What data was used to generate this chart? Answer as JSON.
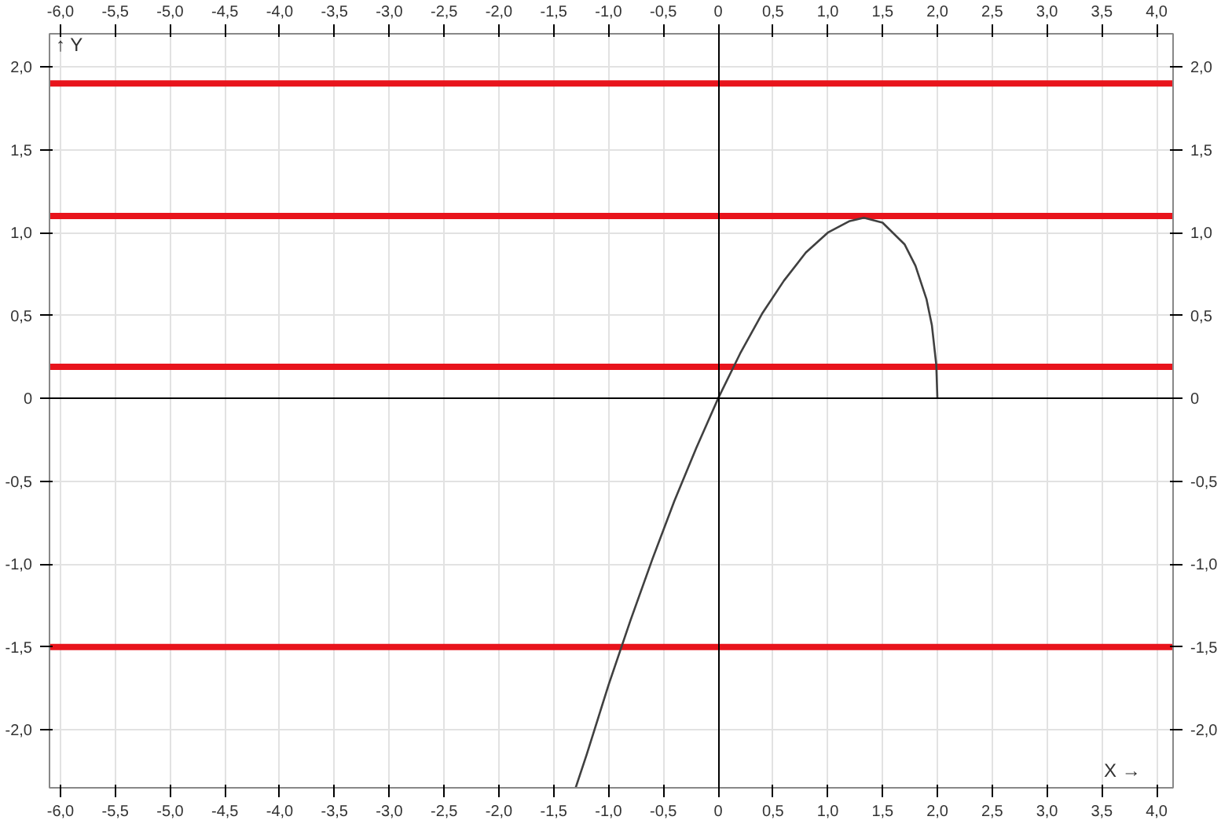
{
  "chart_data": {
    "type": "line",
    "xlabel": "X →",
    "ylabel": "↑ Y",
    "x": [
      -1.3,
      -1.2,
      -1.0,
      -0.8,
      -0.6,
      -0.4,
      -0.2,
      0,
      0.2,
      0.4,
      0.6,
      0.8,
      1.0,
      1.2,
      1.33,
      1.5,
      1.7,
      1.8,
      1.9,
      1.95,
      1.99,
      2.0
    ],
    "series": [
      {
        "color": "#404040",
        "values": [
          -2.35,
          -2.15,
          -1.73,
          -1.34,
          -0.97,
          -0.62,
          -0.3,
          0,
          0.27,
          0.51,
          0.71,
          0.88,
          1.0,
          1.07,
          1.09,
          1.06,
          0.93,
          0.8,
          0.6,
          0.44,
          0.2,
          0
        ]
      }
    ],
    "xlim": [
      -6.1,
      4.15
    ],
    "ylim": [
      -2.35,
      2.2
    ],
    "xticks": [
      {
        "value": -6,
        "label": "-6,0"
      },
      {
        "value": -5.5,
        "label": "-5,5"
      },
      {
        "value": -5,
        "label": "-5,0"
      },
      {
        "value": -4.5,
        "label": "-4,5"
      },
      {
        "value": -4,
        "label": "-4,0"
      },
      {
        "value": -3.5,
        "label": "-3,5"
      },
      {
        "value": -3,
        "label": "-3,0"
      },
      {
        "value": -2.5,
        "label": "-2,5"
      },
      {
        "value": -2,
        "label": "-2,0"
      },
      {
        "value": -1.5,
        "label": "-1,5"
      },
      {
        "value": -1,
        "label": "-1,0"
      },
      {
        "value": -0.5,
        "label": "-0,5"
      },
      0,
      {
        "value": 0.5,
        "label": "0,5"
      },
      {
        "value": 1,
        "label": "1,0"
      },
      {
        "value": 1.5,
        "label": "1,5"
      },
      {
        "value": 2,
        "label": "2,0"
      },
      {
        "value": 2.5,
        "label": "2,5"
      },
      {
        "value": 3,
        "label": "3,0"
      },
      {
        "value": 3.5,
        "label": "3,5"
      },
      {
        "value": 4,
        "label": "4,0"
      }
    ],
    "yticks": [
      {
        "value": -2,
        "label": "-2,0"
      },
      {
        "value": -1.5,
        "label": "-1,5"
      },
      {
        "value": -1,
        "label": "-1,0"
      },
      {
        "value": -0.5,
        "label": "-0,5"
      },
      0,
      {
        "value": 0.5,
        "label": "0,5"
      },
      {
        "value": 1,
        "label": "1,0"
      },
      {
        "value": 1.5,
        "label": "1,5"
      },
      {
        "value": 2,
        "label": "2,0"
      }
    ],
    "x2lim": [
      -6.1,
      4.15
    ],
    "x2ticks": [
      {
        "value": -6,
        "label": "-6,0"
      },
      {
        "value": -5.5,
        "label": "-5,5"
      },
      {
        "value": -5,
        "label": "-5,0"
      },
      {
        "value": -4.5,
        "label": "-4,5"
      },
      {
        "value": -4,
        "label": "-4,0"
      },
      {
        "value": -3.5,
        "label": "-3,5"
      },
      {
        "value": -3,
        "label": "-3,0"
      },
      {
        "value": -2.5,
        "label": "-2,5"
      },
      {
        "value": -2,
        "label": "-2,0"
      },
      {
        "value": -1.5,
        "label": "-1,5"
      },
      {
        "value": -1,
        "label": "-1,0"
      },
      {
        "value": -0.5,
        "label": "-0,5"
      },
      0,
      {
        "value": 0.5,
        "label": "0,5"
      },
      {
        "value": 1,
        "label": "1,0"
      },
      {
        "value": 1.5,
        "label": "1,5"
      },
      {
        "value": 2,
        "label": "2,0"
      },
      {
        "value": 2.5,
        "label": "2,5"
      },
      {
        "value": 3,
        "label": "3,0"
      },
      {
        "value": 3.5,
        "label": "3,5"
      },
      {
        "value": 4,
        "label": "4,0"
      }
    ],
    "y2lim": [
      -2.35,
      2.2
    ],
    "y2ticks": [
      {
        "value": -2,
        "label": "-2,0"
      },
      {
        "value": -1.5,
        "label": "-1,5"
      },
      {
        "value": -1,
        "label": "-1,0"
      },
      {
        "value": -0.5,
        "label": "-0,5"
      },
      0,
      {
        "value": 0.5,
        "label": "0,5"
      },
      {
        "value": 1,
        "label": "1,0"
      },
      {
        "value": 1.5,
        "label": "1,5"
      },
      {
        "value": 2,
        "label": "2,0"
      }
    ],
    "ref_lines": [
      {
        "axis": "y",
        "value": 1.9,
        "color": "#e8141c"
      },
      {
        "axis": "y",
        "value": 1.1,
        "color": "#e8141c"
      },
      {
        "axis": "y",
        "value": 0.19,
        "color": "#e8141c"
      },
      {
        "axis": "y",
        "value": -1.5,
        "color": "#e8141c"
      }
    ],
    "grid": true,
    "marker": "none",
    "line_style": "solid"
  }
}
